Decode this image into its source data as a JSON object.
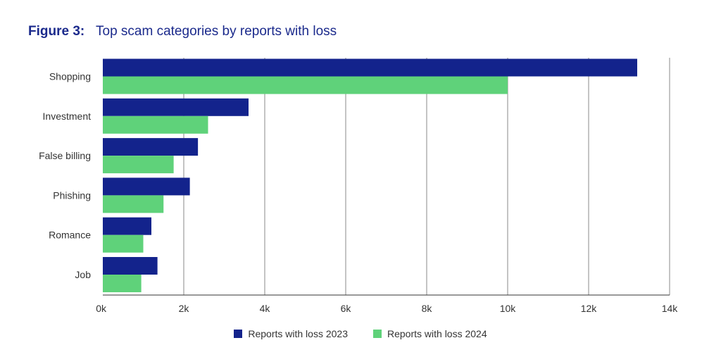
{
  "figure_label": "Figure 3:",
  "colors": {
    "series_2023": "#13238c",
    "series_2024": "#5fd27a",
    "title": "#1b2a8c"
  },
  "chart_data": {
    "type": "bar",
    "orientation": "horizontal",
    "title": "Top scam categories by reports with loss",
    "categories": [
      "Shopping",
      "Investment",
      "False billing",
      "Phishing",
      "Romance",
      "Job"
    ],
    "series": [
      {
        "name": "Reports with loss 2023",
        "values": [
          13200,
          3600,
          2350,
          2150,
          1200,
          1350
        ]
      },
      {
        "name": "Reports with loss 2024",
        "values": [
          10000,
          2600,
          1750,
          1500,
          1000,
          950
        ]
      }
    ],
    "xlim": [
      0,
      14000
    ],
    "xticks": [
      "0k",
      "2k",
      "4k",
      "6k",
      "8k",
      "10k",
      "12k",
      "14k"
    ],
    "xtick_values": [
      0,
      2000,
      4000,
      6000,
      8000,
      10000,
      12000,
      14000
    ],
    "grid": "vertical",
    "legend_position": "bottom"
  }
}
